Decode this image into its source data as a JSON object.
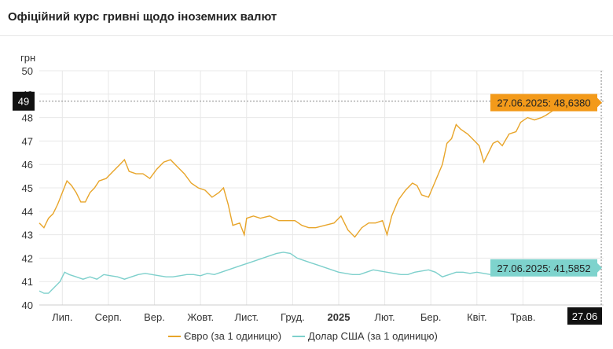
{
  "header": {
    "title": "Офіційний курс гривні щодо іноземних валют"
  },
  "chart_data": {
    "type": "line",
    "ylabel": "грн",
    "ylim": [
      40,
      50
    ],
    "yticks": [
      40,
      41,
      42,
      43,
      44,
      45,
      46,
      47,
      48,
      49,
      50
    ],
    "x_tick_labels": [
      "Лип.",
      "Серп.",
      "Вер.",
      "Жовт.",
      "Лист.",
      "Груд.",
      "2025",
      "Лют.",
      "Бер.",
      "Квіт.",
      "Трав."
    ],
    "x_tick_positions": [
      6.5,
      7.5,
      8.5,
      9.5,
      10.5,
      11.5,
      12.5,
      13.5,
      14.5,
      15.5,
      16.5
    ],
    "xlim": [
      6.0,
      18.25
    ],
    "crosshair": {
      "x_label": "27.06",
      "y_label": "49",
      "x": 18.2,
      "y": 48.7
    },
    "colors": {
      "eur": "#e8a52a",
      "usd": "#7ed0cc",
      "eur_badge": "#f39a1a",
      "usd_badge": "#7ed3cd",
      "grid": "#e8e8e8"
    },
    "series": [
      {
        "name": "Євро (за 1 одиницю)",
        "color": "#e8a52a",
        "badge": "27.06.2025: 48,6380",
        "points": [
          [
            6.0,
            43.5
          ],
          [
            6.1,
            43.3
          ],
          [
            6.2,
            43.7
          ],
          [
            6.3,
            43.9
          ],
          [
            6.4,
            44.3
          ],
          [
            6.5,
            44.8
          ],
          [
            6.6,
            45.3
          ],
          [
            6.7,
            45.1
          ],
          [
            6.8,
            44.8
          ],
          [
            6.9,
            44.4
          ],
          [
            7.0,
            44.4
          ],
          [
            7.1,
            44.8
          ],
          [
            7.2,
            45.0
          ],
          [
            7.3,
            45.3
          ],
          [
            7.45,
            45.4
          ],
          [
            7.6,
            45.7
          ],
          [
            7.75,
            46.0
          ],
          [
            7.85,
            46.2
          ],
          [
            7.95,
            45.7
          ],
          [
            8.1,
            45.6
          ],
          [
            8.25,
            45.6
          ],
          [
            8.4,
            45.4
          ],
          [
            8.55,
            45.8
          ],
          [
            8.7,
            46.1
          ],
          [
            8.85,
            46.2
          ],
          [
            9.0,
            45.9
          ],
          [
            9.15,
            45.6
          ],
          [
            9.3,
            45.2
          ],
          [
            9.45,
            45.0
          ],
          [
            9.6,
            44.9
          ],
          [
            9.75,
            44.6
          ],
          [
            9.9,
            44.8
          ],
          [
            10.0,
            45.0
          ],
          [
            10.1,
            44.3
          ],
          [
            10.2,
            43.4
          ],
          [
            10.35,
            43.5
          ],
          [
            10.45,
            43.0
          ],
          [
            10.5,
            43.7
          ],
          [
            10.65,
            43.8
          ],
          [
            10.8,
            43.7
          ],
          [
            11.0,
            43.8
          ],
          [
            11.2,
            43.6
          ],
          [
            11.4,
            43.6
          ],
          [
            11.55,
            43.6
          ],
          [
            11.7,
            43.4
          ],
          [
            11.85,
            43.3
          ],
          [
            12.0,
            43.3
          ],
          [
            12.2,
            43.4
          ],
          [
            12.4,
            43.5
          ],
          [
            12.55,
            43.8
          ],
          [
            12.7,
            43.2
          ],
          [
            12.85,
            42.9
          ],
          [
            13.0,
            43.3
          ],
          [
            13.15,
            43.5
          ],
          [
            13.3,
            43.5
          ],
          [
            13.45,
            43.6
          ],
          [
            13.55,
            43.0
          ],
          [
            13.65,
            43.8
          ],
          [
            13.8,
            44.5
          ],
          [
            13.95,
            44.9
          ],
          [
            14.1,
            45.2
          ],
          [
            14.2,
            45.1
          ],
          [
            14.3,
            44.7
          ],
          [
            14.45,
            44.6
          ],
          [
            14.6,
            45.3
          ],
          [
            14.75,
            46.0
          ],
          [
            14.85,
            46.9
          ],
          [
            14.95,
            47.1
          ],
          [
            15.05,
            47.7
          ],
          [
            15.15,
            47.5
          ],
          [
            15.3,
            47.3
          ],
          [
            15.45,
            47.0
          ],
          [
            15.55,
            46.8
          ],
          [
            15.65,
            46.1
          ],
          [
            15.75,
            46.5
          ],
          [
            15.85,
            46.9
          ],
          [
            15.95,
            47.0
          ],
          [
            16.05,
            46.8
          ],
          [
            16.2,
            47.3
          ],
          [
            16.35,
            47.4
          ],
          [
            16.45,
            47.8
          ],
          [
            16.6,
            48.0
          ],
          [
            16.75,
            47.9
          ],
          [
            16.9,
            48.0
          ],
          [
            17.0,
            48.1
          ],
          [
            17.15,
            48.3
          ],
          [
            17.25,
            48.5
          ],
          [
            17.3,
            48.64
          ]
        ]
      },
      {
        "name": "Долар США (за 1 одиницю)",
        "color": "#7ed0cc",
        "badge": "27.06.2025: 41,5852",
        "points": [
          [
            6.0,
            40.6
          ],
          [
            6.1,
            40.5
          ],
          [
            6.2,
            40.5
          ],
          [
            6.3,
            40.7
          ],
          [
            6.45,
            41.0
          ],
          [
            6.55,
            41.4
          ],
          [
            6.65,
            41.3
          ],
          [
            6.8,
            41.2
          ],
          [
            6.95,
            41.1
          ],
          [
            7.1,
            41.2
          ],
          [
            7.25,
            41.1
          ],
          [
            7.4,
            41.3
          ],
          [
            7.55,
            41.25
          ],
          [
            7.7,
            41.2
          ],
          [
            7.85,
            41.1
          ],
          [
            8.0,
            41.2
          ],
          [
            8.15,
            41.3
          ],
          [
            8.3,
            41.35
          ],
          [
            8.45,
            41.3
          ],
          [
            8.6,
            41.25
          ],
          [
            8.75,
            41.2
          ],
          [
            8.9,
            41.2
          ],
          [
            9.05,
            41.25
          ],
          [
            9.2,
            41.3
          ],
          [
            9.35,
            41.3
          ],
          [
            9.5,
            41.25
          ],
          [
            9.65,
            41.35
          ],
          [
            9.8,
            41.3
          ],
          [
            9.95,
            41.4
          ],
          [
            10.1,
            41.5
          ],
          [
            10.25,
            41.6
          ],
          [
            10.4,
            41.7
          ],
          [
            10.55,
            41.8
          ],
          [
            10.7,
            41.9
          ],
          [
            10.85,
            42.0
          ],
          [
            11.0,
            42.1
          ],
          [
            11.15,
            42.2
          ],
          [
            11.3,
            42.25
          ],
          [
            11.45,
            42.2
          ],
          [
            11.6,
            42.0
          ],
          [
            11.75,
            41.9
          ],
          [
            11.9,
            41.8
          ],
          [
            12.05,
            41.7
          ],
          [
            12.2,
            41.6
          ],
          [
            12.35,
            41.5
          ],
          [
            12.5,
            41.4
          ],
          [
            12.65,
            41.35
          ],
          [
            12.8,
            41.3
          ],
          [
            12.95,
            41.3
          ],
          [
            13.1,
            41.4
          ],
          [
            13.25,
            41.5
          ],
          [
            13.4,
            41.45
          ],
          [
            13.55,
            41.4
          ],
          [
            13.7,
            41.35
          ],
          [
            13.85,
            41.3
          ],
          [
            14.0,
            41.3
          ],
          [
            14.15,
            41.4
          ],
          [
            14.3,
            41.45
          ],
          [
            14.45,
            41.5
          ],
          [
            14.6,
            41.4
          ],
          [
            14.75,
            41.2
          ],
          [
            14.9,
            41.3
          ],
          [
            15.05,
            41.4
          ],
          [
            15.2,
            41.4
          ],
          [
            15.35,
            41.35
          ],
          [
            15.5,
            41.4
          ],
          [
            15.65,
            41.35
          ],
          [
            15.8,
            41.3
          ],
          [
            15.95,
            41.4
          ],
          [
            16.1,
            41.5
          ],
          [
            16.25,
            41.55
          ],
          [
            16.4,
            41.5
          ],
          [
            16.55,
            41.55
          ],
          [
            16.7,
            41.55
          ],
          [
            16.85,
            41.6
          ],
          [
            17.0,
            41.55
          ],
          [
            17.15,
            41.6
          ],
          [
            17.3,
            41.5852
          ]
        ]
      }
    ],
    "legend": {
      "placement": "bottom-center"
    }
  }
}
